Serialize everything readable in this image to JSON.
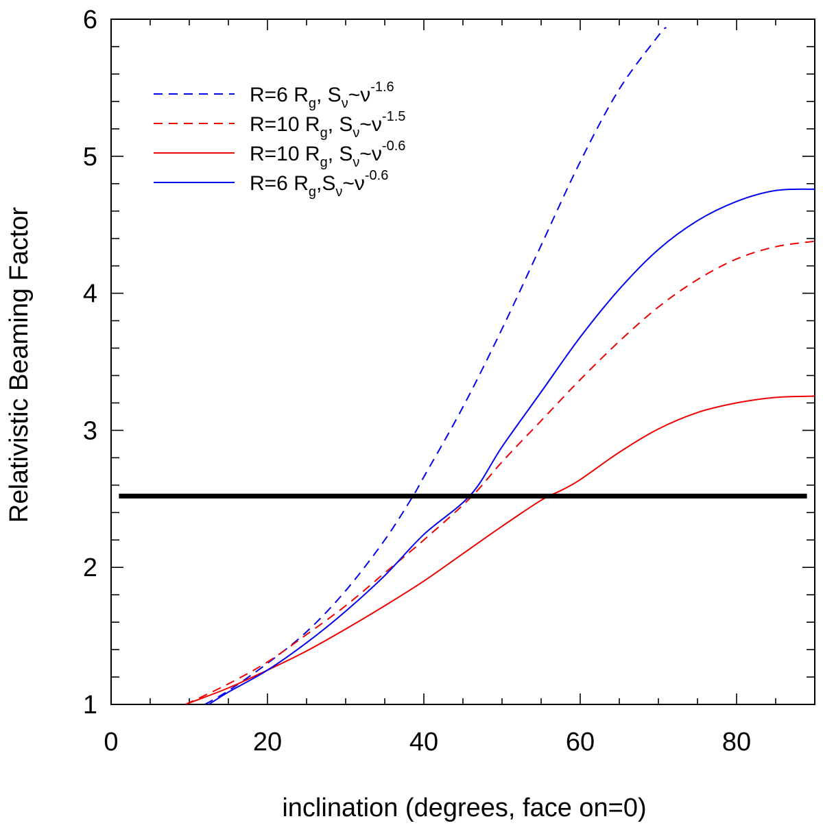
{
  "chart_data": {
    "type": "line",
    "title": "",
    "xlabel": "inclination (degrees, face on=0)",
    "ylabel": "Relativistic Beaming Factor",
    "xlim": [
      0,
      90
    ],
    "ylim": [
      1,
      6
    ],
    "x_ticks": [
      0,
      20,
      40,
      60,
      80
    ],
    "y_ticks": [
      1,
      2,
      3,
      4,
      5,
      6
    ],
    "x_tick_labels": [
      "0",
      "20",
      "40",
      "60",
      "80"
    ],
    "y_tick_labels": [
      "1",
      "2",
      "3",
      "4",
      "5",
      "6"
    ],
    "x_minor_step": 5,
    "y_minor_step": 0.2,
    "grid": false,
    "legend_position": "top-left",
    "series": [
      {
        "name": "R=6 R_g, S_ν~ν^-1.6",
        "legend_parts": {
          "lead": "R=6 R",
          "sub1": "g",
          "mid": ", S",
          "sub2": "ν",
          "tail": "~ν",
          "sup": "-1.6"
        },
        "color": "#0000ee",
        "dash": "dashed",
        "x": [
          12,
          15,
          20,
          25,
          30,
          35,
          38.5,
          40,
          45,
          50,
          55,
          60,
          65,
          70,
          71
        ],
        "y": [
          1.0,
          1.1,
          1.3,
          1.53,
          1.83,
          2.2,
          2.51,
          2.66,
          3.17,
          3.74,
          4.35,
          4.96,
          5.49,
          5.88,
          5.94
        ]
      },
      {
        "name": "R=10 R_g, S_ν~ν^-1.5",
        "legend_parts": {
          "lead": "R=10 R",
          "sub1": "g",
          "mid": ", S",
          "sub2": "ν",
          "tail": "~ν",
          "sup": "-1.5"
        },
        "color": "#ee0000",
        "dash": "dashed",
        "x": [
          9.5,
          15,
          20,
          25,
          30,
          35,
          40,
          46,
          50,
          55,
          60,
          65,
          70,
          75,
          80,
          85,
          90
        ],
        "y": [
          1.0,
          1.15,
          1.31,
          1.51,
          1.72,
          1.96,
          2.2,
          2.51,
          2.77,
          3.07,
          3.37,
          3.65,
          3.9,
          4.1,
          4.25,
          4.34,
          4.38
        ]
      },
      {
        "name": "R=10 R_g, S_ν~ν^-0.6",
        "legend_parts": {
          "lead": "R=10 R",
          "sub1": "g",
          "mid": ", S",
          "sub2": "ν",
          "tail": "~ν",
          "sup": "-0.6"
        },
        "color": "#ee0000",
        "dash": "solid",
        "x": [
          9.5,
          15,
          20,
          25,
          30,
          35,
          40,
          45,
          50,
          55,
          57.5,
          60,
          65,
          70,
          75,
          80,
          85,
          90
        ],
        "y": [
          1.0,
          1.12,
          1.25,
          1.39,
          1.55,
          1.72,
          1.9,
          2.1,
          2.3,
          2.49,
          2.56,
          2.64,
          2.84,
          3.01,
          3.13,
          3.2,
          3.24,
          3.25
        ]
      },
      {
        "name": "R=6 R_g,S_ν~ν^-0.6",
        "legend_parts": {
          "lead": "R=6 R",
          "sub1": "g",
          "mid": ",S",
          "sub2": "ν",
          "tail": "~ν",
          "sup": "-0.6"
        },
        "color": "#0000ee",
        "dash": "solid",
        "x": [
          12.5,
          15,
          20,
          25,
          30,
          35,
          40,
          46,
          50,
          55,
          60,
          65,
          70,
          75,
          80,
          85,
          90
        ],
        "y": [
          1.0,
          1.09,
          1.25,
          1.45,
          1.68,
          1.94,
          2.24,
          2.53,
          2.88,
          3.28,
          3.68,
          4.03,
          4.32,
          4.53,
          4.67,
          4.75,
          4.76
        ]
      }
    ],
    "reference_line": {
      "y": 2.52,
      "x_start": 1,
      "x_end": 89,
      "color": "#000000"
    }
  }
}
